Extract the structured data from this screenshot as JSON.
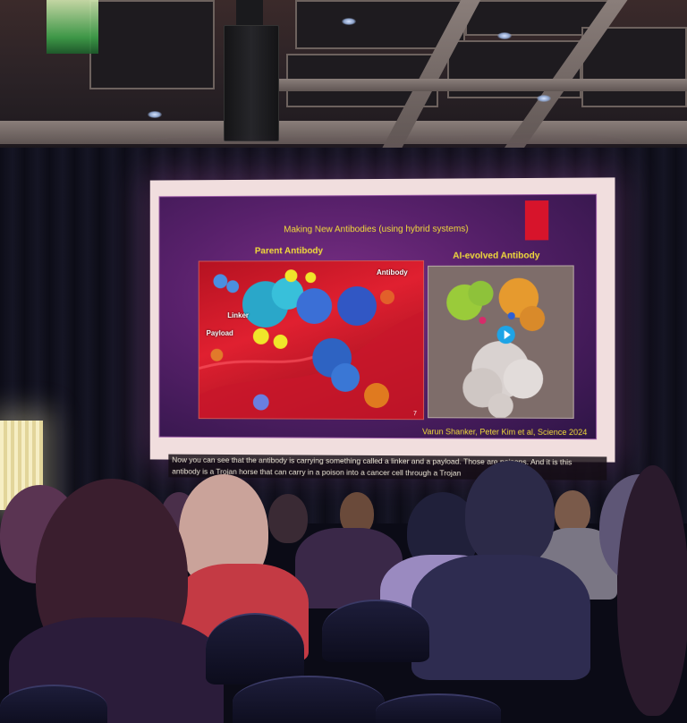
{
  "slide": {
    "title": "Making New Antibodies (using hybrid systems)",
    "left_label": "Parent Antibody",
    "right_label": "AI-evolved Antibody",
    "parent_annotations": {
      "antibody": "Antibody",
      "linker": "Linker",
      "payload": "Payload"
    },
    "page_number": "7",
    "citation": "Varun Shanker, Peter Kim et al, Science 2024"
  },
  "caption": {
    "line1": "Now you can see that the antibody is carrying something called a linker and a payload. Those are poisons. And it is this",
    "line2": "antibody is a Trojan horse that can carry in a poison into a cancer cell through a Trojan"
  },
  "colors": {
    "slide_title": "#f2dc3a",
    "accent_red": "#d7142b",
    "slide_bg": "#57206a"
  },
  "icons": {
    "play": "play-icon"
  }
}
